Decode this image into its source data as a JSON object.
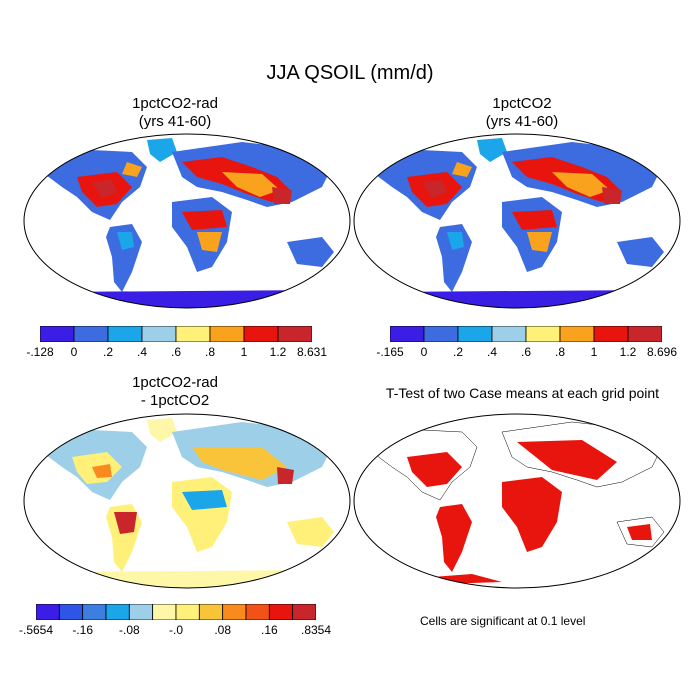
{
  "title": "JJA QSOIL (mm/d)",
  "panels": [
    {
      "id": "p1",
      "title_line1": "1pctCO2-rad",
      "title_line2": "(yrs 41-60)"
    },
    {
      "id": "p2",
      "title_line1": "1pctCO2",
      "title_line2": "(yrs 41-60)"
    },
    {
      "id": "p3",
      "title_line1": "1pctCO2-rad",
      "title_line2": "- 1pctCO2"
    },
    {
      "id": "p4",
      "title_line1": "T-Test of two Case means at each grid point",
      "title_line2": ""
    }
  ],
  "colorbars": [
    {
      "id": "cb1",
      "colors": [
        "#3b1ee6",
        "#3d6be0",
        "#1aa6e8",
        "#9ecfe8",
        "#fff07a",
        "#f9a21e",
        "#e8150e",
        "#c8262a"
      ],
      "labels": [
        "-.128",
        "0",
        ".2",
        ".4",
        ".6",
        ".8",
        "1",
        "1.2",
        "8.631"
      ]
    },
    {
      "id": "cb2",
      "colors": [
        "#3b1ee6",
        "#3d6be0",
        "#1aa6e8",
        "#9ecfe8",
        "#fff07a",
        "#f9a21e",
        "#e8150e",
        "#c8262a"
      ],
      "labels": [
        "-.165",
        "0",
        ".2",
        ".4",
        ".6",
        ".8",
        "1",
        "1.2",
        "8.696"
      ]
    },
    {
      "id": "cb3",
      "colors": [
        "#3b1ee6",
        "#2f55e6",
        "#3d7fe0",
        "#1aa6e8",
        "#9ecfe8",
        "#fff7a8",
        "#fff07a",
        "#f9c43a",
        "#f98a1e",
        "#f2521a",
        "#e8150e",
        "#c8262a"
      ],
      "labels": [
        "-.5654",
        "-.16",
        "-.08",
        "-.0",
        ".08",
        ".16",
        ".8354"
      ]
    }
  ],
  "note": "Cells are significant at 0.1 level"
}
